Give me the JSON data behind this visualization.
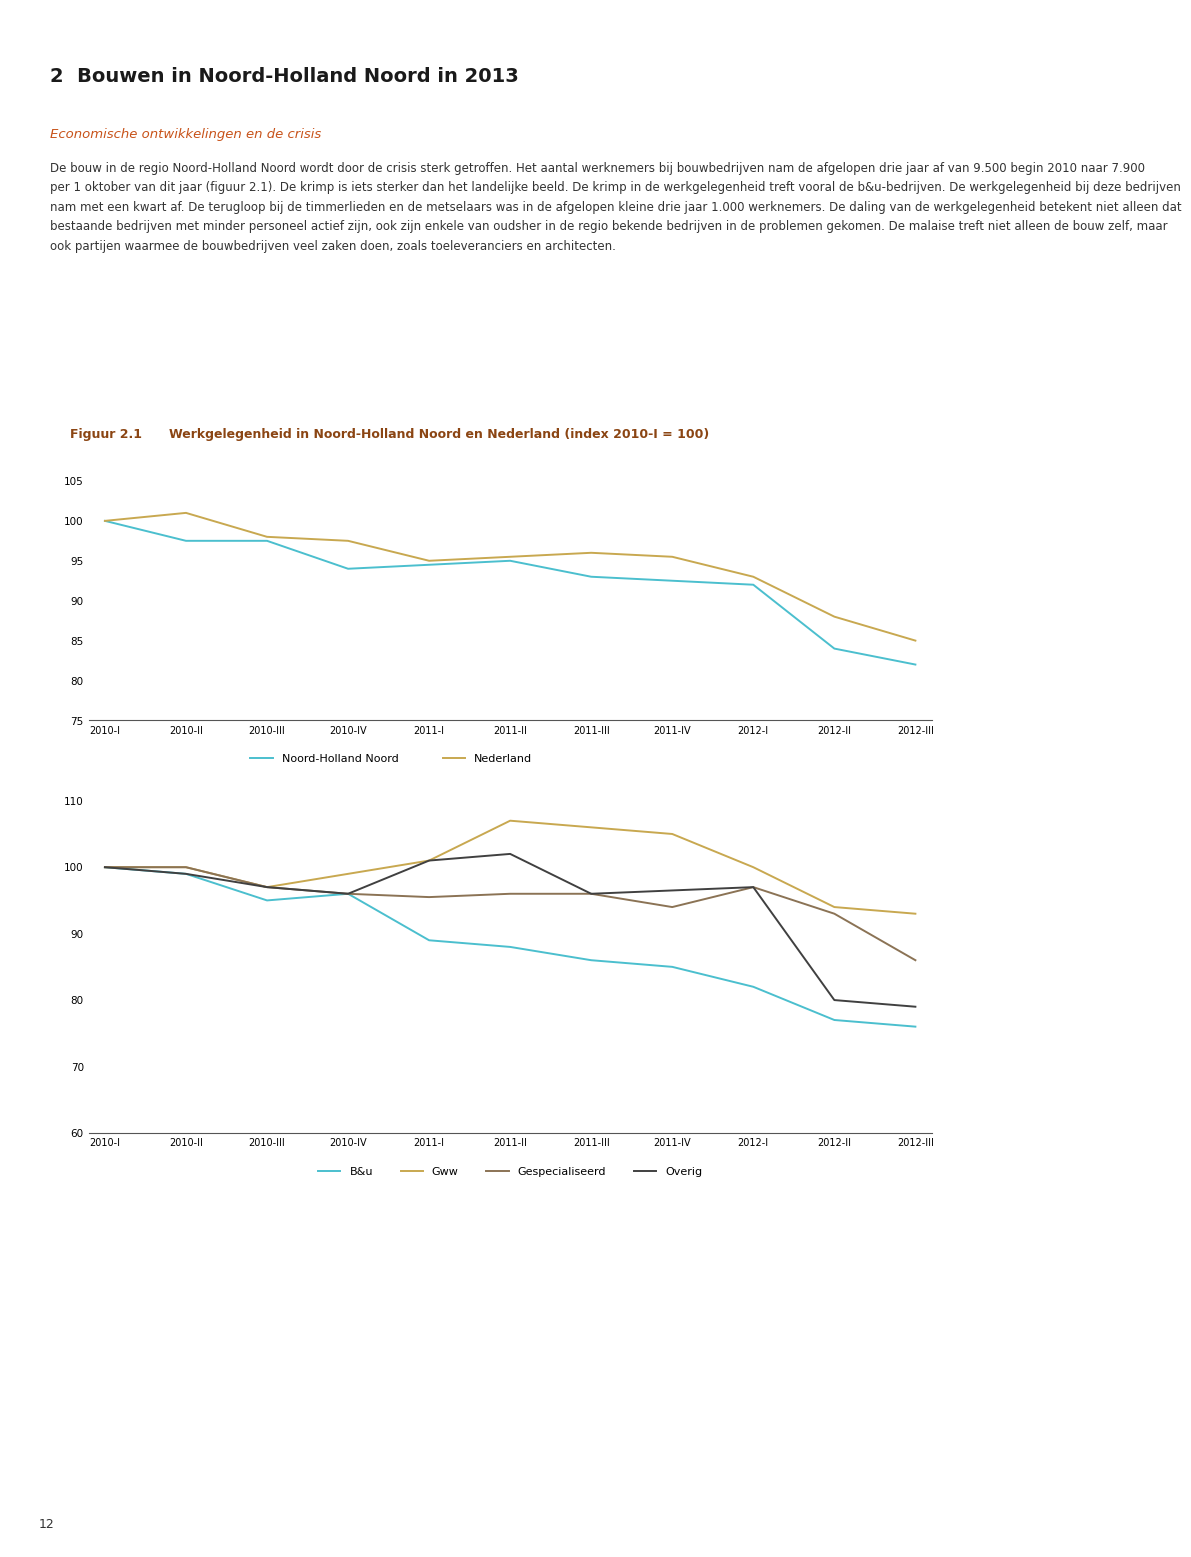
{
  "page_title": "2  Bouwen in Noord-Holland Noord in 2013",
  "section_subtitle": "Economische ontwikkelingen en de crisis",
  "body_line1": "De bouw in de regio Noord-Holland Noord wordt door de crisis sterk getroffen. Het aantal werknemers bij bouwbedrijven nam de afgelopen drie jaar af van 9.500 begin 2010 naar 7.900",
  "body_line2": "per 1 oktober van dit jaar (figuur 2.1). De krimp is iets sterker dan het landelijke beeld. De krimp in de werkgelegenheid treft vooral de b&u-bedrijven. De werkgelegenheid bij deze bedrijven",
  "body_line3": "nam met een kwart af. De terugloop bij de timmerlieden en de metselaars was in de afgelopen kleine drie jaar 1.000 werknemers. De daling van de werkgelegenheid betekent niet alleen dat",
  "body_line4": "bestaande bedrijven met minder personeel actief zijn, ook zijn enkele van oudsher in de regio bekende bedrijven in de problemen gekomen. De malaise treft niet alleen de bouw zelf, maar",
  "body_line5": "ook partijen waarmee de bouwbedrijven veel zaken doen, zoals toeleveranciers en architecten.",
  "fig_label": "Figuur 2.1",
  "fig_title": "Werkgelegenheid in Noord-Holland Noord en Nederland (index 2010-I = 100)",
  "x_labels": [
    "2010-I",
    "2010-II",
    "2010-III",
    "2010-IV",
    "2011-I",
    "2011-II",
    "2011-III",
    "2011-IV",
    "2012-I",
    "2012-II",
    "2012-III"
  ],
  "chart1": {
    "ylim": [
      75,
      105
    ],
    "yticks": [
      75,
      80,
      85,
      90,
      95,
      100,
      105
    ],
    "series": {
      "Noord-Holland Noord": {
        "color": "#4BBFCE",
        "data": [
          100,
          97.5,
          97.5,
          94,
          94.5,
          95,
          93,
          92.5,
          92,
          84,
          82
        ]
      },
      "Nederland": {
        "color": "#C8A850",
        "data": [
          100,
          101,
          98,
          97.5,
          95,
          95.5,
          96,
          95.5,
          93,
          88,
          85
        ]
      }
    }
  },
  "chart2": {
    "ylim": [
      60,
      110
    ],
    "yticks": [
      60,
      70,
      80,
      90,
      100,
      110
    ],
    "series": {
      "B&u": {
        "color": "#4BBFCE",
        "data": [
          100,
          99,
          95,
          96,
          89,
          88,
          86,
          85,
          82,
          77,
          76
        ]
      },
      "Gww": {
        "color": "#C8A850",
        "data": [
          100,
          100,
          97,
          99,
          101,
          107,
          106,
          105,
          100,
          94,
          93
        ]
      },
      "Gespecialiseerd": {
        "color": "#8B7355",
        "data": [
          100,
          100,
          97,
          96,
          95.5,
          96,
          96,
          94,
          97,
          93,
          86
        ]
      },
      "Overig": {
        "color": "#404040",
        "data": [
          100,
          99,
          97,
          96,
          101,
          102,
          96,
          96.5,
          97,
          80,
          79
        ]
      }
    }
  },
  "header_bg": "#D4891A",
  "fig_header_bg": "#FAE5B8",
  "fig_label_color": "#8B4513",
  "title_color": "#C8531A",
  "body_text_color": "#333333",
  "page_bg": "#FFFFFF",
  "footer_bg": "#FAE5B8",
  "footer_bar_color": "#D4891A",
  "page_number": "12",
  "title_line_color": "#C8531A"
}
